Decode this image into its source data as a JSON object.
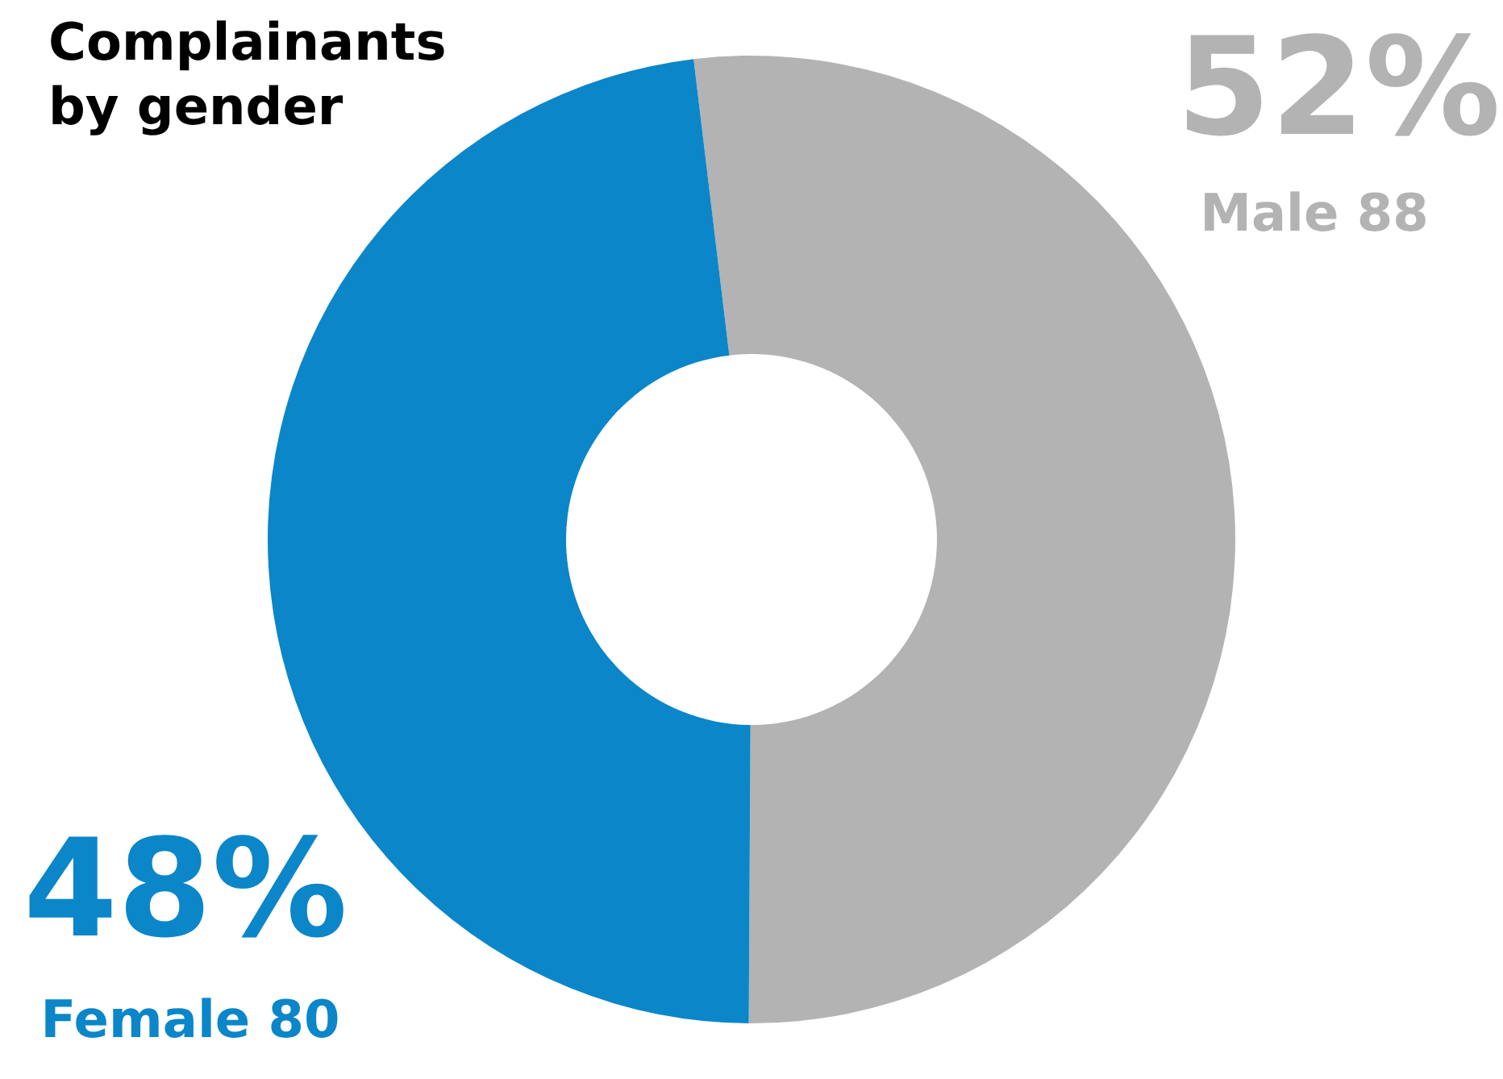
{
  "chart_data": {
    "type": "donut",
    "title": "Complainants\nby gender",
    "categories": [
      "Male 88",
      "Female 80"
    ],
    "values": [
      52,
      48
    ],
    "colors": [
      "#b3b3b3",
      "#0b86c9"
    ],
    "value_labels": [
      "52%",
      "48%"
    ],
    "legend": false
  }
}
